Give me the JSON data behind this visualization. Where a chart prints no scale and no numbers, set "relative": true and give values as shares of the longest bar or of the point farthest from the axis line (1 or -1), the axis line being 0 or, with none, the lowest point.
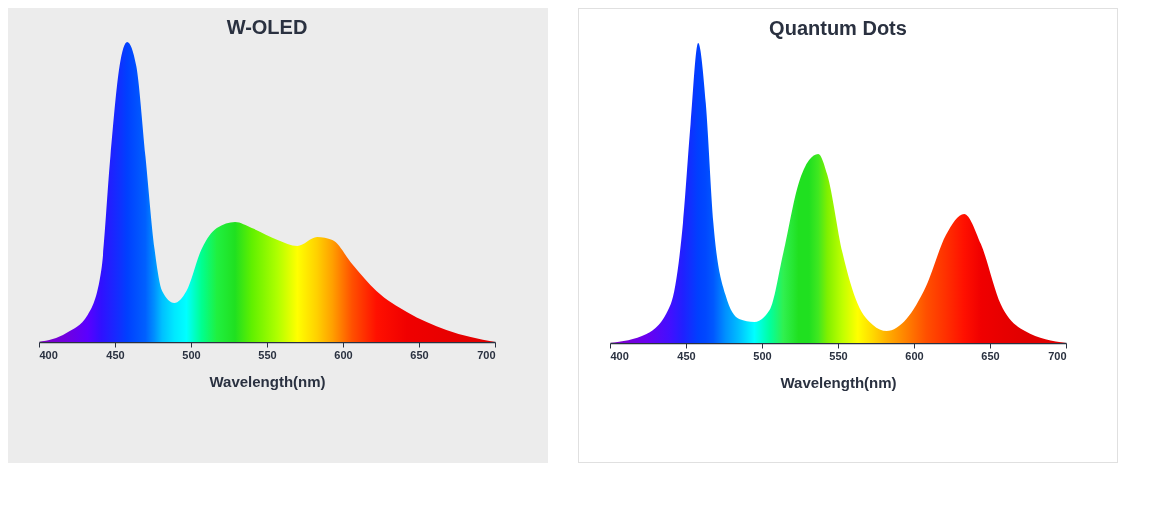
{
  "chart_data": [
    {
      "type": "area",
      "title": "W-OLED",
      "xlabel": "Wavelength(nm)",
      "relative": true,
      "tick_labels": "x",
      "xlim": [
        400,
        700
      ],
      "xticks": [
        400,
        450,
        500,
        550,
        600,
        650,
        700
      ],
      "x": [
        400,
        418,
        432,
        441,
        447,
        453,
        458,
        464,
        470,
        476,
        481,
        489,
        497,
        507,
        517,
        529,
        540,
        557,
        570,
        583,
        593,
        606,
        622,
        642,
        668,
        700
      ],
      "values": [
        0,
        0.03,
        0.09,
        0.24,
        0.62,
        0.92,
        1,
        0.92,
        0.62,
        0.31,
        0.17,
        0.13,
        0.17,
        0.31,
        0.38,
        0.4,
        0.38,
        0.34,
        0.32,
        0.35,
        0.34,
        0.26,
        0.17,
        0.1,
        0.04,
        0
      ],
      "colors": [
        "#8000c0",
        "#7000e0",
        "#5a00ff",
        "#3010ff",
        "#2020ff",
        "#1030ff",
        "#0040ff",
        "#0050ff",
        "#0060ff",
        "#0090ff",
        "#00c0ff",
        "#00e8ff",
        "#00ffff",
        "#00ff90",
        "#20f040",
        "#20e020",
        "#60f000",
        "#b0ff00",
        "#ffff00",
        "#ffd000",
        "#ffa000",
        "#ff5000",
        "#ff1000",
        "#f00000",
        "#e80000",
        "#e00000"
      ]
    },
    {
      "type": "area",
      "title": "Quantum Dots",
      "xlabel": "Wavelength(nm)",
      "relative": true,
      "tick_labels": "x",
      "xlim": [
        400,
        700
      ],
      "xticks": [
        400,
        450,
        500,
        550,
        600,
        650,
        700
      ],
      "x": [
        400,
        424,
        440,
        448,
        453,
        458,
        463,
        468,
        476,
        485,
        495,
        505,
        514,
        524,
        531,
        537,
        543,
        553,
        563,
        573,
        582,
        595,
        608,
        621,
        633,
        644,
        657,
        673,
        700
      ],
      "values": [
        0,
        0.03,
        0.13,
        0.4,
        0.73,
        1,
        0.8,
        0.4,
        0.16,
        0.08,
        0.07,
        0.11,
        0.3,
        0.53,
        0.61,
        0.63,
        0.56,
        0.3,
        0.13,
        0.06,
        0.04,
        0.08,
        0.19,
        0.36,
        0.43,
        0.33,
        0.13,
        0.04,
        0
      ],
      "colors": [
        "#8000c0",
        "#6a00f0",
        "#4010ff",
        "#2020ff",
        "#1030ff",
        "#0040ff",
        "#0048ff",
        "#0058ff",
        "#0090ff",
        "#00c0ff",
        "#00ffff",
        "#00ffa0",
        "#30f050",
        "#20e020",
        "#20e020",
        "#40e820",
        "#80f000",
        "#c0ff00",
        "#ffff00",
        "#ffd800",
        "#ffb000",
        "#ff8000",
        "#ff5000",
        "#ff3000",
        "#ff1000",
        "#f00000",
        "#e80000",
        "#e00000",
        "#e00000"
      ]
    }
  ]
}
